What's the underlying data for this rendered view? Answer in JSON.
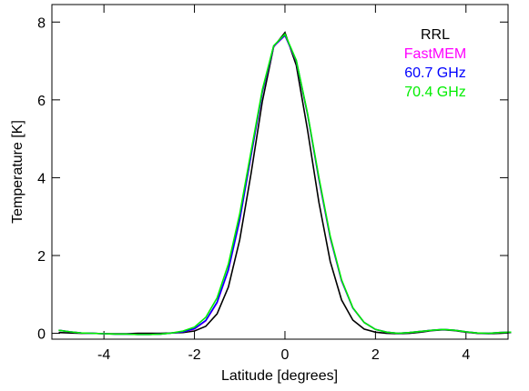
{
  "chart_data": {
    "type": "line",
    "x_label": "Latitude [degrees]",
    "y_label": "Temperature [K]",
    "x": [
      -5,
      -4.75,
      -4.5,
      -4.25,
      -4,
      -3.75,
      -3.5,
      -3.25,
      -3,
      -2.75,
      -2.5,
      -2.25,
      -2,
      -1.75,
      -1.5,
      -1.25,
      -1,
      -0.75,
      -0.5,
      -0.25,
      0,
      0.25,
      0.5,
      0.75,
      1,
      1.25,
      1.5,
      1.75,
      2,
      2.25,
      2.5,
      2.75,
      3,
      3.25,
      3.5,
      3.75,
      4,
      4.25,
      4.5,
      4.75,
      5
    ],
    "series": [
      {
        "name": "RRL",
        "color": "#000000",
        "values": [
          0.02,
          0.01,
          0,
          0,
          -0.01,
          -0.01,
          -0.01,
          0,
          0,
          0,
          0.01,
          0.02,
          0.06,
          0.18,
          0.5,
          1.19,
          2.4,
          4.1,
          5.96,
          7.36,
          7.73,
          6.89,
          5.22,
          3.37,
          1.85,
          0.86,
          0.34,
          0.11,
          0.03,
          0,
          -0.01,
          0,
          0.03,
          0.07,
          0.09,
          0.07,
          0.03,
          0,
          -0.01,
          0,
          0.02
        ]
      },
      {
        "name": "FastMEM",
        "color": "#ff00ff",
        "values": [
          0.08,
          0.04,
          0.01,
          0,
          -0.01,
          -0.02,
          -0.02,
          -0.03,
          -0.03,
          -0.02,
          0.01,
          0.04,
          0.11,
          0.32,
          0.78,
          1.62,
          2.9,
          4.55,
          6.2,
          7.37,
          7.65,
          7.0,
          5.62,
          3.95,
          2.45,
          1.35,
          0.65,
          0.28,
          0.1,
          0.03,
          0,
          0.02,
          0.05,
          0.08,
          0.1,
          0.08,
          0.04,
          0.01,
          0,
          0.02,
          0.03
        ]
      },
      {
        "name": "60.7 GHz",
        "color": "#0000ff",
        "values": [
          0.08,
          0.04,
          0.01,
          0,
          -0.01,
          -0.02,
          -0.02,
          -0.03,
          -0.03,
          -0.02,
          0.01,
          0.04,
          0.12,
          0.33,
          0.8,
          1.64,
          2.92,
          4.57,
          6.21,
          7.38,
          7.66,
          7.01,
          5.63,
          3.97,
          2.47,
          1.36,
          0.65,
          0.28,
          0.1,
          0.03,
          0,
          0.02,
          0.05,
          0.08,
          0.1,
          0.08,
          0.04,
          0.01,
          0,
          0.02,
          0.03
        ]
      },
      {
        "name": "70.4 GHz",
        "color": "#00ee00",
        "values": [
          0.08,
          0.04,
          0.01,
          0,
          -0.01,
          -0.02,
          -0.02,
          -0.03,
          -0.03,
          -0.02,
          0.01,
          0.06,
          0.16,
          0.41,
          0.91,
          1.78,
          3.07,
          4.67,
          6.26,
          7.39,
          7.69,
          7.02,
          5.65,
          4.01,
          2.5,
          1.38,
          0.66,
          0.28,
          0.1,
          0.03,
          0,
          0.02,
          0.05,
          0.08,
          0.1,
          0.08,
          0.04,
          0.01,
          0,
          0.02,
          0.03
        ]
      }
    ],
    "xlim": [
      -5.15,
      4.93
    ],
    "ylim": [
      -0.15,
      8.45
    ],
    "xticks": [
      -4,
      -2,
      0,
      2,
      4
    ],
    "yticks": [
      0,
      2,
      4,
      6,
      8
    ],
    "legend": "upper right"
  }
}
